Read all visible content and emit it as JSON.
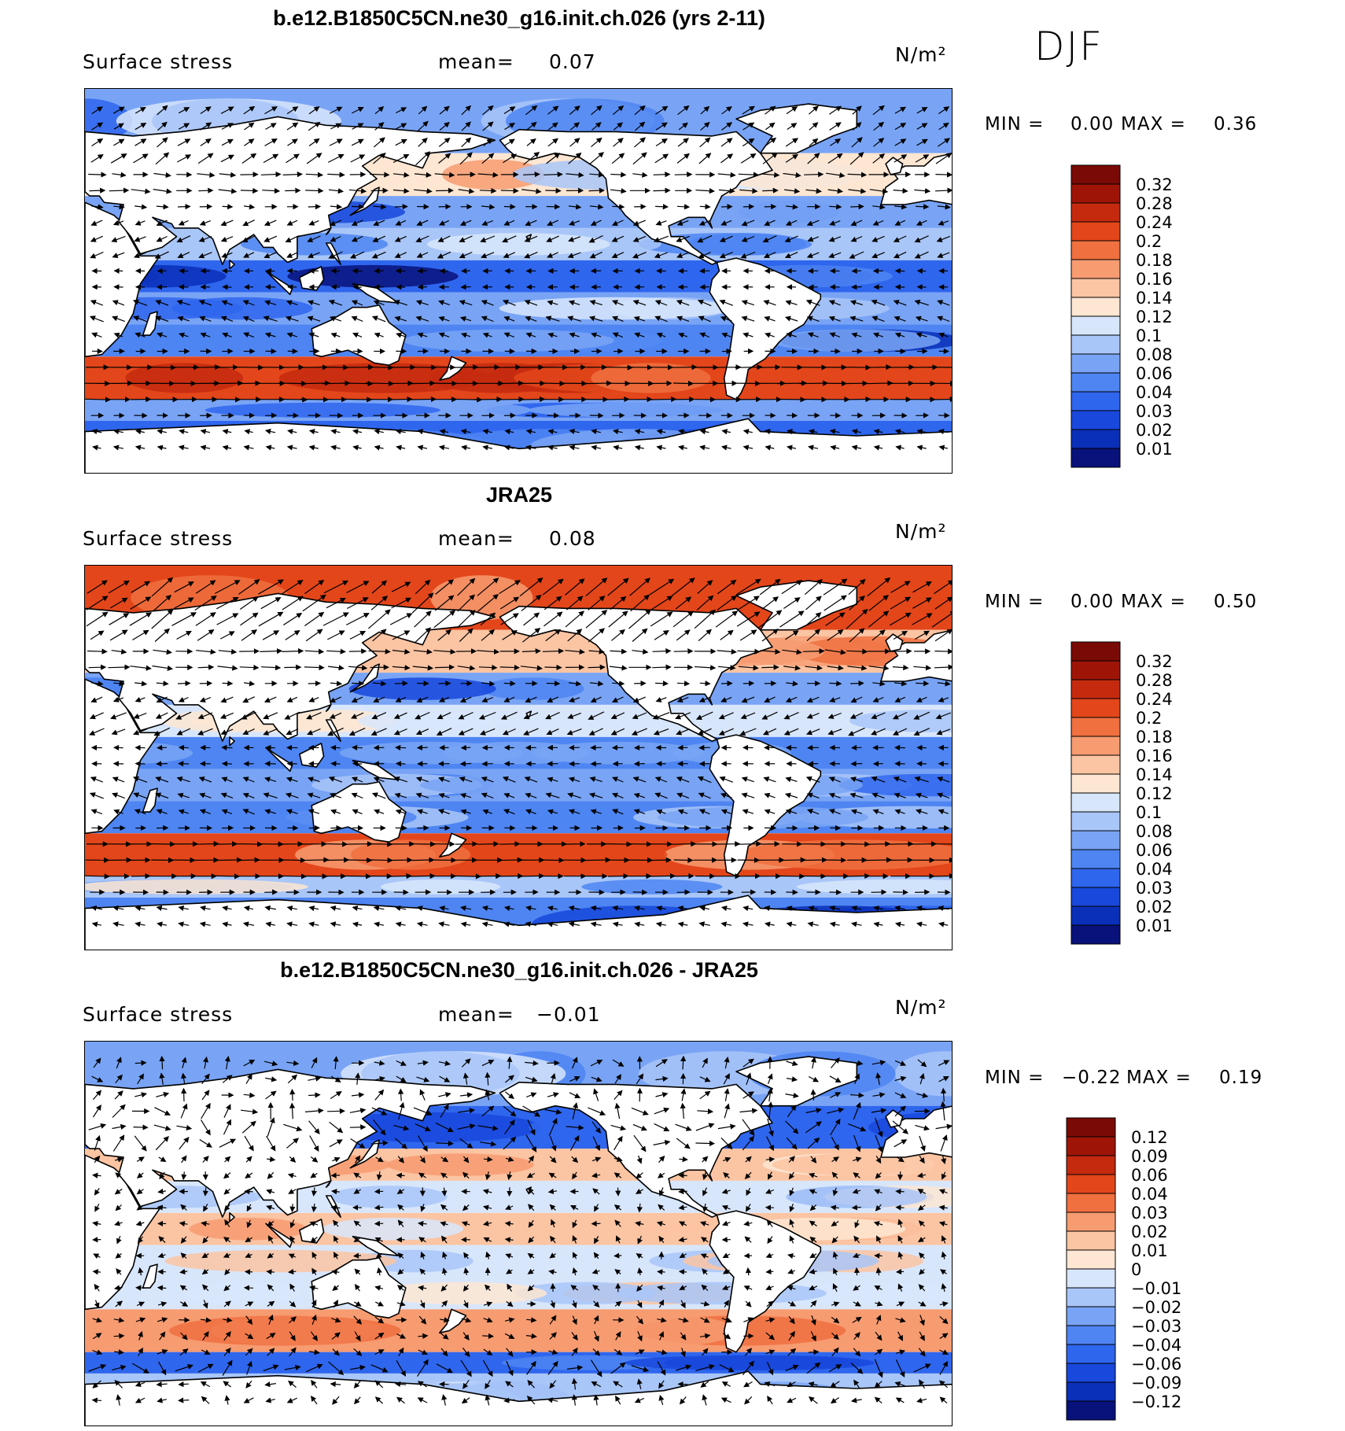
{
  "season": "DJF",
  "colors": {
    "land": "#ffffff",
    "coast": "#000000",
    "positive_scale": [
      "#08127a",
      "#0a2fb8",
      "#1848dc",
      "#2f66ee",
      "#4e85f2",
      "#79a4f5",
      "#a9c6f8",
      "#d8e6fb",
      "#fde6d2",
      "#fbc4a3",
      "#f79b71",
      "#f0703f",
      "#e3461a",
      "#c52a0f",
      "#9e1508",
      "#7a0a05"
    ],
    "diff_scale": [
      "#08127a",
      "#0a2fb8",
      "#1848dc",
      "#2f66ee",
      "#4e85f2",
      "#79a4f5",
      "#a9c6f8",
      "#d8e6fb",
      "#fde6d2",
      "#fbc4a3",
      "#f79b71",
      "#f0703f",
      "#e3461a",
      "#c52a0f",
      "#9e1508",
      "#7a0a05"
    ]
  },
  "panels": [
    {
      "title": "b.e12.B1850C5CN.ne30_g16.init.ch.026 (yrs 2-11)",
      "variable": "Surface stress",
      "mean_label": "mean=",
      "mean_value": "0.07",
      "units": "N/m²",
      "min_label": "MIN =",
      "min_value": "0.00",
      "max_label": "MAX =",
      "max_value": "0.36",
      "colorbar_ticks": [
        "0.32",
        "0.28",
        "0.24",
        "0.2",
        "0.18",
        "0.16",
        "0.14",
        "0.12",
        "0.1",
        "0.08",
        "0.06",
        "0.04",
        "0.03",
        "0.02",
        "0.01"
      ]
    },
    {
      "title": "JRA25",
      "variable": "Surface stress",
      "mean_label": "mean=",
      "mean_value": "0.08",
      "units": "N/m²",
      "min_label": "MIN =",
      "min_value": "0.00",
      "max_label": "MAX =",
      "max_value": "0.50",
      "colorbar_ticks": [
        "0.32",
        "0.28",
        "0.24",
        "0.2",
        "0.18",
        "0.16",
        "0.14",
        "0.12",
        "0.1",
        "0.08",
        "0.06",
        "0.04",
        "0.03",
        "0.02",
        "0.01"
      ]
    },
    {
      "title": "b.e12.B1850C5CN.ne30_g16.init.ch.026 - JRA25",
      "variable": "Surface stress",
      "mean_label": "mean=",
      "mean_value": "−0.01",
      "units": "N/m²",
      "min_label": "MIN =",
      "min_value": "−0.22",
      "max_label": "MAX =",
      "max_value": "0.19",
      "colorbar_ticks": [
        "0.12",
        "0.09",
        "0.06",
        "0.04",
        "0.03",
        "0.02",
        "0.01",
        "0",
        "−0.01",
        "−0.02",
        "−0.03",
        "−0.04",
        "−0.06",
        "−0.09",
        "−0.12"
      ]
    }
  ],
  "chart_data": [
    {
      "type": "heatmap",
      "title": "b.e12.B1850C5CN.ne30_g16.init.ch.026 (yrs 2-11)",
      "field": "Surface stress",
      "units": "N/m²",
      "season": "DJF",
      "mean": 0.07,
      "min": 0.0,
      "max": 0.36,
      "levels": [
        0.01,
        0.02,
        0.03,
        0.04,
        0.06,
        0.08,
        0.1,
        0.12,
        0.14,
        0.16,
        0.18,
        0.2,
        0.24,
        0.28,
        0.32
      ],
      "zonal_bands": [
        {
          "lat": [
            60,
            90
          ],
          "value": 0.07
        },
        {
          "lat": [
            40,
            60
          ],
          "value": 0.12
        },
        {
          "lat": [
            25,
            40
          ],
          "value": 0.06
        },
        {
          "lat": [
            10,
            25
          ],
          "value": 0.08
        },
        {
          "lat": [
            -5,
            10
          ],
          "value": 0.03
        },
        {
          "lat": [
            -20,
            -5
          ],
          "value": 0.07
        },
        {
          "lat": [
            -35,
            -20
          ],
          "value": 0.04
        },
        {
          "lat": [
            -55,
            -35
          ],
          "value": 0.22
        },
        {
          "lat": [
            -65,
            -55
          ],
          "value": 0.06
        },
        {
          "lat": [
            -90,
            -65
          ],
          "value": 0.03
        }
      ],
      "vectors": "overlay"
    },
    {
      "type": "heatmap",
      "title": "JRA25",
      "field": "Surface stress",
      "units": "N/m²",
      "season": "DJF",
      "mean": 0.08,
      "min": 0.0,
      "max": 0.5,
      "levels": [
        0.01,
        0.02,
        0.03,
        0.04,
        0.06,
        0.08,
        0.1,
        0.12,
        0.14,
        0.16,
        0.18,
        0.2,
        0.24,
        0.28,
        0.32
      ],
      "zonal_bands": [
        {
          "lat": [
            60,
            90
          ],
          "value": 0.2
        },
        {
          "lat": [
            40,
            60
          ],
          "value": 0.14
        },
        {
          "lat": [
            25,
            40
          ],
          "value": 0.06
        },
        {
          "lat": [
            10,
            25
          ],
          "value": 0.1
        },
        {
          "lat": [
            -5,
            10
          ],
          "value": 0.04
        },
        {
          "lat": [
            -20,
            -5
          ],
          "value": 0.07
        },
        {
          "lat": [
            -35,
            -20
          ],
          "value": 0.05
        },
        {
          "lat": [
            -55,
            -35
          ],
          "value": 0.2
        },
        {
          "lat": [
            -65,
            -55
          ],
          "value": 0.08
        },
        {
          "lat": [
            -90,
            -65
          ],
          "value": 0.04
        }
      ],
      "vectors": "overlay"
    },
    {
      "type": "heatmap",
      "title": "b.e12.B1850C5CN.ne30_g16.init.ch.026 - JRA25",
      "field": "Surface stress",
      "units": "N/m²",
      "season": "DJF",
      "mean": -0.01,
      "min": -0.22,
      "max": 0.19,
      "levels": [
        -0.12,
        -0.09,
        -0.06,
        -0.04,
        -0.03,
        -0.02,
        -0.01,
        0,
        0.01,
        0.02,
        0.03,
        0.04,
        0.06,
        0.09,
        0.12
      ],
      "zonal_bands": [
        {
          "lat": [
            60,
            90
          ],
          "value": -0.03
        },
        {
          "lat": [
            40,
            60
          ],
          "value": -0.06
        },
        {
          "lat": [
            25,
            40
          ],
          "value": 0.01
        },
        {
          "lat": [
            10,
            25
          ],
          "value": -0.01
        },
        {
          "lat": [
            -5,
            10
          ],
          "value": 0.01
        },
        {
          "lat": [
            -20,
            -5
          ],
          "value": -0.005
        },
        {
          "lat": [
            -35,
            -20
          ],
          "value": -0.01
        },
        {
          "lat": [
            -55,
            -35
          ],
          "value": 0.02
        },
        {
          "lat": [
            -65,
            -55
          ],
          "value": -0.06
        },
        {
          "lat": [
            -90,
            -65
          ],
          "value": -0.02
        }
      ],
      "vectors": "overlay"
    }
  ]
}
